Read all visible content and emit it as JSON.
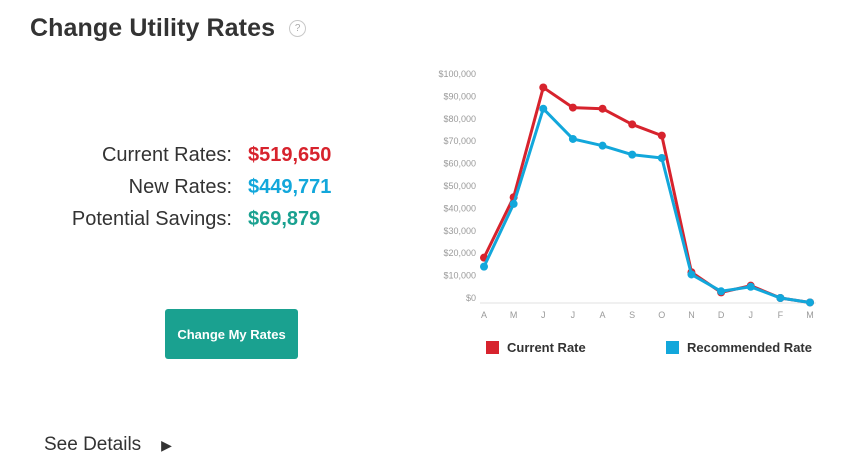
{
  "header": {
    "title": "Change Utility Rates",
    "help_icon": "?"
  },
  "summary": {
    "current": {
      "label": "Current Rates:",
      "value": "$519,650",
      "color": "#d7232d"
    },
    "new": {
      "label": "New Rates:",
      "value": "$449,771",
      "color": "#12a7db"
    },
    "savings": {
      "label": "Potential Savings:",
      "value": "$69,879",
      "color": "#1aa190"
    }
  },
  "actions": {
    "change_button": "Change My Rates",
    "see_details": "See Details",
    "see_details_icon": "▶"
  },
  "colors": {
    "current_rate": "#d7232d",
    "recommended_rate": "#12a7db",
    "button": "#1aa190"
  },
  "chart_data": {
    "type": "line",
    "categories": [
      "A",
      "M",
      "J",
      "J",
      "A",
      "S",
      "O",
      "N",
      "D",
      "J",
      "F",
      "M"
    ],
    "y_ticks": [
      "$0",
      "$10,000",
      "$20,000",
      "$30,000",
      "$40,000",
      "$50,000",
      "$60,000",
      "$70,000",
      "$80,000",
      "$90,000",
      "$100,000"
    ],
    "ylim": [
      0,
      100000
    ],
    "grid": false,
    "legend_placement": "bottom",
    "series": [
      {
        "name": "Current Rate",
        "color": "#d7232d",
        "values": [
          18000,
          45000,
          94000,
          85000,
          84500,
          77500,
          72500,
          11500,
          2500,
          5500,
          0,
          -2000
        ]
      },
      {
        "name": "Recommended Rate",
        "color": "#12a7db",
        "values": [
          14000,
          42000,
          84500,
          71000,
          68000,
          64000,
          62500,
          10500,
          3000,
          5000,
          0,
          -2000
        ]
      }
    ]
  }
}
